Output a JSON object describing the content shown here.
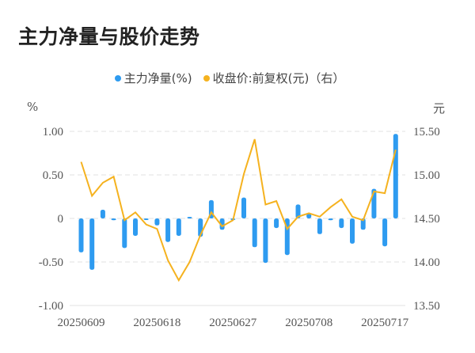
{
  "title": "主力净量与股价走势",
  "legend": {
    "series1": "主力净量(%)",
    "series2": "收盘价:前复权(元)（右）"
  },
  "axes": {
    "left_unit": "%",
    "right_unit": "元",
    "left_ticks": [
      "1.00",
      "0.50",
      "0",
      "-0.50",
      "-1.00"
    ],
    "right_ticks": [
      "15.50",
      "15.00",
      "14.50",
      "14.00",
      "13.50"
    ],
    "x_ticks": [
      "20250609",
      "20250618",
      "20250627",
      "20250708",
      "20250717"
    ]
  },
  "colors": {
    "bar": "#2e9bf0",
    "line": "#f5b21f",
    "grid": "#e6e6e6"
  },
  "chart_data": {
    "type": "bar+line",
    "title": "主力净量与股价走势",
    "xlabel": "",
    "ylabel": "%",
    "y2label": "元",
    "ylim": [
      -1.0,
      1.0
    ],
    "y2lim": [
      13.5,
      15.5
    ],
    "grid": true,
    "legend_position": "top",
    "x_tick_labels": [
      "20250609",
      "20250618",
      "20250627",
      "20250708",
      "20250717"
    ],
    "x_tick_indices": [
      0,
      7,
      14,
      21,
      28
    ],
    "series": [
      {
        "name": "主力净量(%)",
        "type": "bar",
        "axis": "left",
        "values": [
          -0.39,
          -0.59,
          0.1,
          -0.02,
          -0.34,
          -0.2,
          -0.01,
          -0.08,
          -0.27,
          -0.2,
          0.01,
          -0.21,
          0.21,
          -0.13,
          -0.01,
          0.24,
          -0.33,
          -0.51,
          -0.11,
          -0.42,
          0.16,
          0.06,
          -0.18,
          -0.02,
          -0.11,
          -0.29,
          -0.13,
          0.34,
          -0.32,
          0.97
        ]
      },
      {
        "name": "收盘价:前复权(元)（右）",
        "type": "line",
        "axis": "right",
        "values": [
          15.15,
          14.76,
          14.91,
          14.98,
          14.48,
          14.57,
          14.43,
          14.38,
          14.02,
          13.79,
          14.0,
          14.31,
          14.57,
          14.41,
          14.48,
          15.01,
          15.41,
          14.66,
          14.7,
          14.38,
          14.52,
          14.56,
          14.52,
          14.63,
          14.72,
          14.52,
          14.48,
          14.81,
          14.79,
          15.29
        ]
      }
    ]
  }
}
